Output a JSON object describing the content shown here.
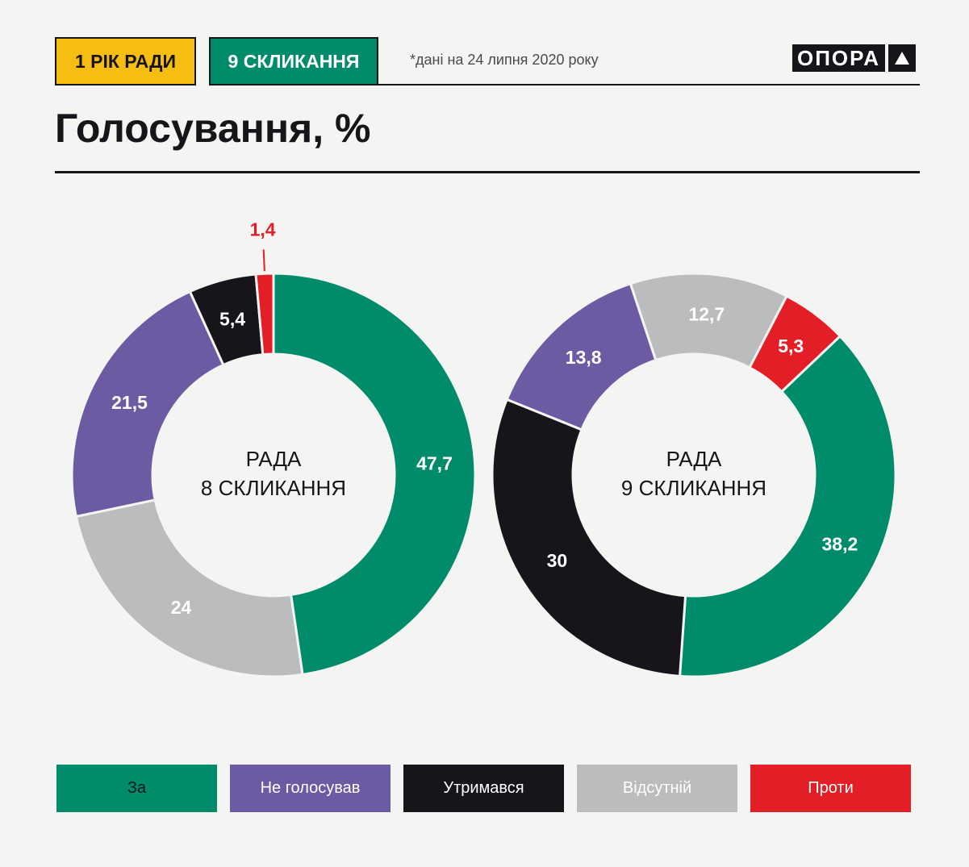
{
  "header": {
    "tag1": "1 РІК РАДИ",
    "tag2": "9 СКЛИКАННЯ",
    "note": "*дані на 24 липня 2020 року",
    "logo": "ОПОРА"
  },
  "title": "Голосування, %",
  "colors": {
    "za": "#008c6a",
    "ne_golosuvav": "#6c5ba3",
    "utrymavsia": "#17141a",
    "vidsutnii": "#bbbcbe",
    "proty": "#e41e26",
    "tag1_bg": "#f6be13",
    "tag2_bg": "#008c6a"
  },
  "legend": [
    {
      "label": "За",
      "color": "#008c6a",
      "text_color": "#17141a"
    },
    {
      "label": "Не голосував",
      "color": "#6c5ba3",
      "text_color": "#ffffff"
    },
    {
      "label": "Утримався",
      "color": "#17141a",
      "text_color": "#ffffff"
    },
    {
      "label": "Відсутній",
      "color": "#bbbcbe",
      "text_color": "#ffffff"
    },
    {
      "label": "Проти",
      "color": "#e41e26",
      "text_color": "#ffffff"
    }
  ],
  "chart_data": [
    {
      "type": "pie",
      "center_label": [
        "РАДА",
        "8 СКЛИКАННЯ"
      ],
      "slices": [
        {
          "name": "За",
          "value": 47.7,
          "label": "47,7",
          "color": "#008c6a"
        },
        {
          "name": "Відсутній",
          "value": 24,
          "label": "24",
          "color": "#bbbcbe"
        },
        {
          "name": "Не голосував",
          "value": 21.5,
          "label": "21,5",
          "color": "#6c5ba3"
        },
        {
          "name": "Утримався",
          "value": 5.4,
          "label": "5,4",
          "color": "#17141a"
        },
        {
          "name": "Проти",
          "value": 1.4,
          "label": "1,4",
          "color": "#e41e26",
          "outside": true
        }
      ]
    },
    {
      "type": "pie",
      "center_label": [
        "РАДА",
        "9 СКЛИКАННЯ"
      ],
      "slices": [
        {
          "name": "Не голосував",
          "value": 13.8,
          "label": "13,8",
          "color": "#6c5ba3"
        },
        {
          "name": "Відсутній",
          "value": 12.7,
          "label": "12,7",
          "color": "#bbbcbe"
        },
        {
          "name": "Проти",
          "value": 5.3,
          "label": "5,3",
          "color": "#e41e26"
        },
        {
          "name": "За",
          "value": 38.2,
          "label": "38,2",
          "color": "#008c6a"
        },
        {
          "name": "Утримався",
          "value": 30,
          "label": "30",
          "color": "#17141a"
        }
      ]
    }
  ]
}
